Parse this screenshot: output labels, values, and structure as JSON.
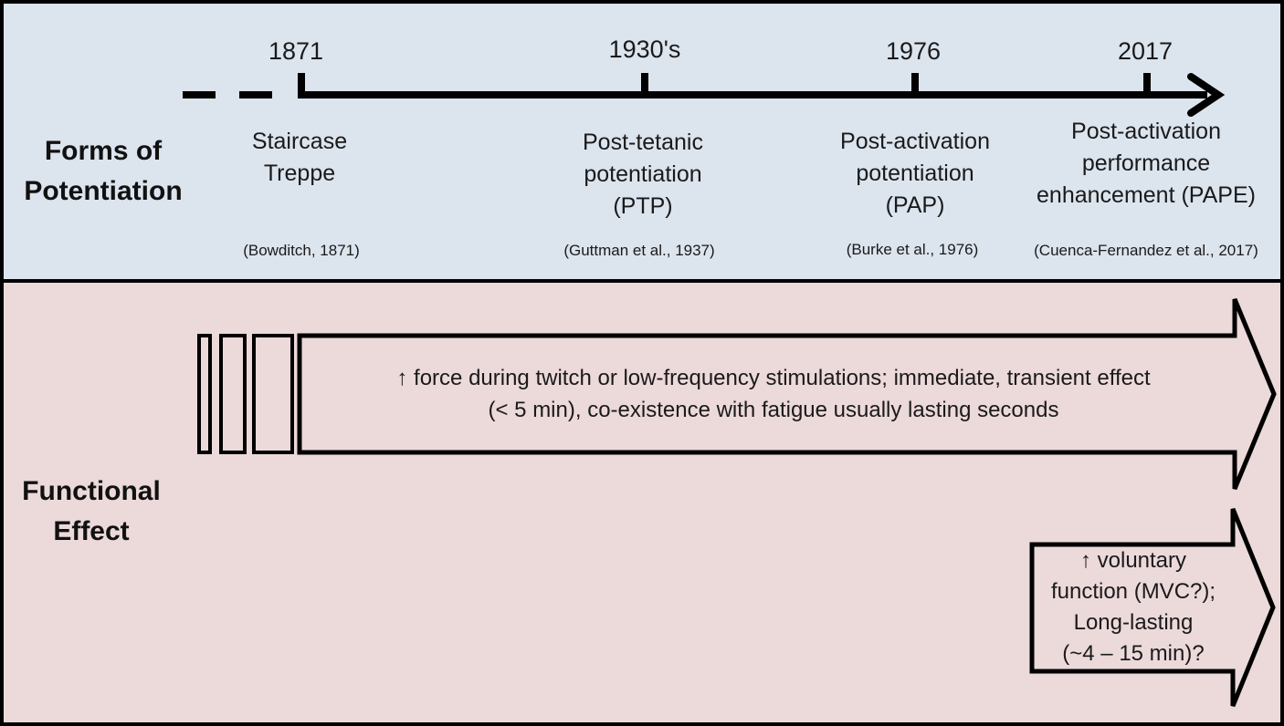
{
  "colors": {
    "top_panel": "#dce4ee",
    "bottom_panel": "#ecd9da",
    "ink": "#000000"
  },
  "row_labels": {
    "forms": [
      "Forms of",
      "Potentiation"
    ],
    "functional": [
      "Functional",
      "Effect"
    ]
  },
  "timeline": {
    "milestones": [
      {
        "year": "1871",
        "name": [
          "Staircase",
          "Treppe"
        ],
        "citation": "(Bowditch, 1871)"
      },
      {
        "year": "1930's",
        "name": [
          "Post-tetanic",
          "potentiation",
          "(PTP)"
        ],
        "citation": "(Guttman et al., 1937)"
      },
      {
        "year": "1976",
        "name": [
          "Post-activation",
          "potentiation",
          "(PAP)"
        ],
        "citation": "(Burke et al., 1976)"
      },
      {
        "year": "2017",
        "name": [
          "Post-activation",
          "performance",
          "enhancement (PAPE)"
        ],
        "citation": "(Cuenca-Fernandez et al., 2017)"
      }
    ]
  },
  "effects": {
    "transient": [
      "↑ force during twitch or low-frequency stimulations; immediate, transient effect",
      "(< 5 min), co-existence with fatigue usually lasting seconds"
    ],
    "voluntary": [
      "↑ voluntary",
      "function (MVC?);",
      "Long-lasting",
      "(~4 – 15 min)?"
    ]
  }
}
